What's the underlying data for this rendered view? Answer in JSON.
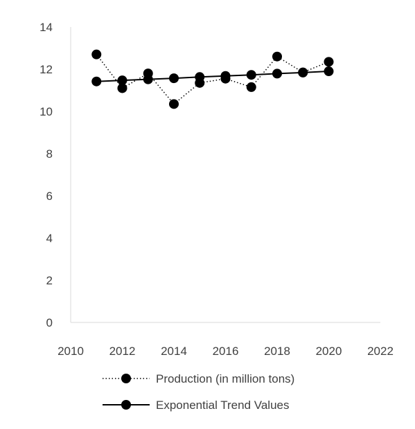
{
  "chart_data": {
    "type": "line",
    "title": "",
    "xlabel": "",
    "ylabel": "",
    "xlim": [
      2010,
      2022
    ],
    "ylim": [
      0,
      14
    ],
    "x_ticks": [
      2010,
      2012,
      2014,
      2016,
      2018,
      2020,
      2022
    ],
    "y_ticks": [
      0,
      2,
      4,
      6,
      8,
      10,
      12,
      14
    ],
    "grid": false,
    "legend_position": "bottom",
    "series": [
      {
        "name": "Production (in million tons)",
        "line_style": "dotted",
        "x": [
          2011,
          2012,
          2013,
          2014,
          2015,
          2016,
          2017,
          2018,
          2019,
          2020
        ],
        "y": [
          12.7,
          11.1,
          11.8,
          10.35,
          11.35,
          11.55,
          11.15,
          12.6,
          11.85,
          12.35
        ]
      },
      {
        "name": "Exponential Trend Values",
        "line_style": "solid",
        "x": [
          2011,
          2012,
          2013,
          2014,
          2015,
          2016,
          2017,
          2018,
          2019,
          2020
        ],
        "y": [
          11.42,
          11.47,
          11.52,
          11.57,
          11.63,
          11.68,
          11.73,
          11.79,
          11.84,
          11.9
        ]
      }
    ],
    "colors": {
      "series": "#000000",
      "axis": "#d9d9d9",
      "text": "#404040"
    }
  }
}
